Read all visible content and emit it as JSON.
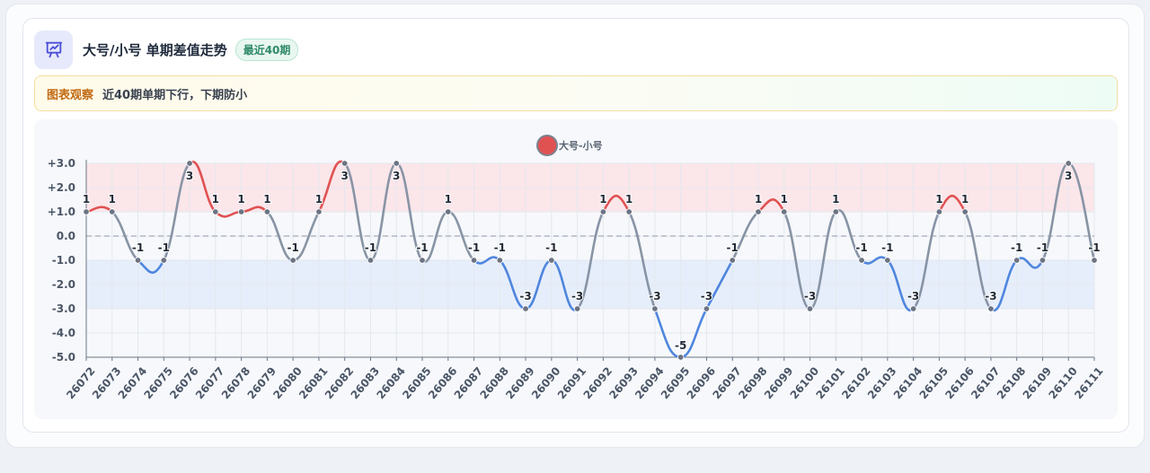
{
  "header": {
    "title": "大号/小号 单期差值走势",
    "badge": "最近40期"
  },
  "note": {
    "label": "图表观察",
    "text": "近40期单期下行，下期防小"
  },
  "colors": {
    "positive": "#e05252",
    "negative": "#4f86de",
    "neutral": "#8894a5",
    "positive_band": "#fbe6ea",
    "negative_band": "#e6eefb"
  },
  "chart_data": {
    "type": "line",
    "series": [
      {
        "name": "大号-小号",
        "values": [
          1,
          1,
          -1,
          -1,
          3,
          1,
          1,
          1,
          -1,
          1,
          3,
          -1,
          3,
          -1,
          1,
          -1,
          -1,
          -3,
          -1,
          -3,
          1,
          1,
          -3,
          -5,
          -3,
          -1,
          1,
          1,
          -3,
          1,
          -1,
          -1,
          -3,
          1,
          1,
          -3,
          -1,
          -1,
          3,
          -1
        ]
      }
    ],
    "categories": [
      "26072",
      "26073",
      "26074",
      "26075",
      "26076",
      "26077",
      "26078",
      "26079",
      "26080",
      "26081",
      "26082",
      "26083",
      "26084",
      "26085",
      "26086",
      "26087",
      "26088",
      "26089",
      "26090",
      "26091",
      "26092",
      "26093",
      "26094",
      "26095",
      "26096",
      "26097",
      "26098",
      "26099",
      "26100",
      "26101",
      "26102",
      "26103",
      "26104",
      "26105",
      "26106",
      "26107",
      "26108",
      "26109",
      "26110",
      "26111"
    ],
    "ylim": [
      -5,
      3
    ],
    "yticks": [
      "+3.0",
      "+2.0",
      "+1.0",
      "0.0",
      "-1.0",
      "-2.0",
      "-3.0",
      "-4.0",
      "-5.0"
    ],
    "bands": [
      {
        "from": 1,
        "to": 3,
        "tone": "positive"
      },
      {
        "from": -3,
        "to": -1,
        "tone": "negative"
      }
    ],
    "reference_line": 0,
    "legend_position": "top-center",
    "grid": true
  }
}
